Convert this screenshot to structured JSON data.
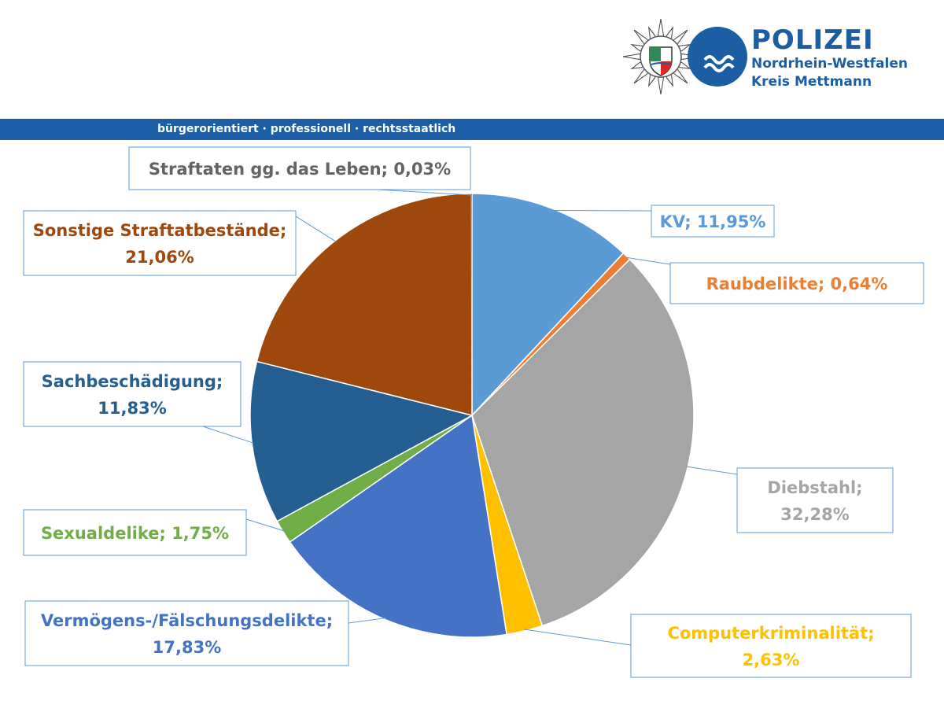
{
  "header": {
    "logo_title": "POLIZEI",
    "logo_subtitle_1": "Nordrhein-Westfalen",
    "logo_subtitle_2": "Kreis Mettmann",
    "tagline": "bürgerorientiert · professionell · rechtsstaatlich"
  },
  "colors": {
    "brand_blue": "#1d5fa6",
    "label_border": "#5b9bd5",
    "leader_line": "#5b9bd5"
  },
  "chart_data": {
    "type": "pie",
    "start_angle_deg": 0,
    "direction": "clockwise",
    "slices": [
      {
        "label": "KV",
        "value": 11.95,
        "display": "KV; 11,95%",
        "lines": [
          "KV; 11,95%"
        ],
        "color": "#5b9bd5",
        "text_color": "#5b9bd5"
      },
      {
        "label": "Raubdelikte",
        "value": 0.64,
        "display": "Raubdelikte; 0,64%",
        "lines": [
          "Raubdelikte; 0,64%"
        ],
        "color": "#ed7d31",
        "text_color": "#ed7d31"
      },
      {
        "label": "Diebstahl",
        "value": 32.28,
        "display": "Diebstahl; 32,28%",
        "lines": [
          "Diebstahl;",
          "32,28%"
        ],
        "color": "#a5a5a5",
        "text_color": "#a5a5a5"
      },
      {
        "label": "Computerkriminalität",
        "value": 2.63,
        "display": "Computerkriminalität; 2,63%",
        "lines": [
          "Computerkriminalität;",
          "2,63%"
        ],
        "color": "#ffc000",
        "text_color": "#ffc000"
      },
      {
        "label": "Vermögens-/Fälschungsdelikte",
        "value": 17.83,
        "display": "Vermögens-/Fälschungsdelikte; 17,83%",
        "lines": [
          "Vermögens-/Fälschungsdelikte;",
          "17,83%"
        ],
        "color": "#4472c4",
        "text_color": "#4472c4"
      },
      {
        "label": "Sexualdelike",
        "value": 1.75,
        "display": "Sexualdelike; 1,75%",
        "lines": [
          "Sexualdelike; 1,75%"
        ],
        "color": "#70ad47",
        "text_color": "#70ad47"
      },
      {
        "label": "Sachbeschädigung",
        "value": 11.83,
        "display": "Sachbeschädigung; 11,83%",
        "lines": [
          "Sachbeschädigung;",
          "11,83%"
        ],
        "color": "#255e91",
        "text_color": "#255e91"
      },
      {
        "label": "Sonstige Straftatbestände",
        "value": 21.06,
        "display": "Sonstige Straftatbestände; 21,06%",
        "lines": [
          "Sonstige Straftatbestände;",
          "21,06%"
        ],
        "color": "#9e480e",
        "text_color": "#9e480e"
      },
      {
        "label": "Straftaten gg. das Leben",
        "value": 0.03,
        "display": "Straftaten gg. das Leben; 0,03%",
        "lines": [
          "Straftaten gg. das Leben; 0,03%"
        ],
        "color": "#636363",
        "text_color": "#636363"
      }
    ]
  }
}
